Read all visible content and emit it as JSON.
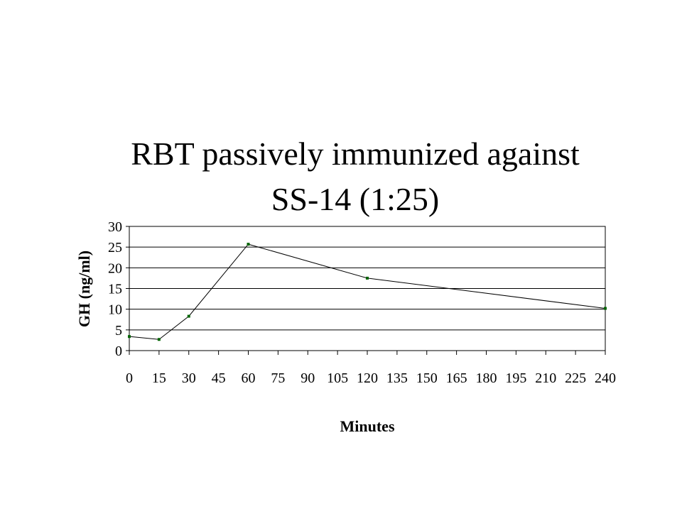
{
  "slide": {
    "title_line1": "RBT passively immunized against",
    "title_line2": "SS-14 (1:25)"
  },
  "chart_data": {
    "type": "line",
    "title": "",
    "xlabel": "Minutes",
    "ylabel": "GH (ng/ml)",
    "x": [
      0,
      15,
      30,
      60,
      120,
      240
    ],
    "series": [
      {
        "values": [
          3.4,
          2.7,
          8.3,
          25.7,
          17.5,
          10.2
        ]
      }
    ],
    "x_ticks": [
      0,
      15,
      30,
      45,
      60,
      75,
      90,
      105,
      120,
      135,
      150,
      165,
      180,
      195,
      210,
      225,
      240
    ],
    "y_ticks": [
      0,
      5,
      10,
      15,
      20,
      25,
      30
    ],
    "xlim": [
      0,
      240
    ],
    "ylim": [
      0,
      30
    ],
    "grid": "horizontal",
    "legend": "none",
    "colors": {
      "line": "#000000",
      "marker": "#006400",
      "grid": "#000000"
    }
  }
}
